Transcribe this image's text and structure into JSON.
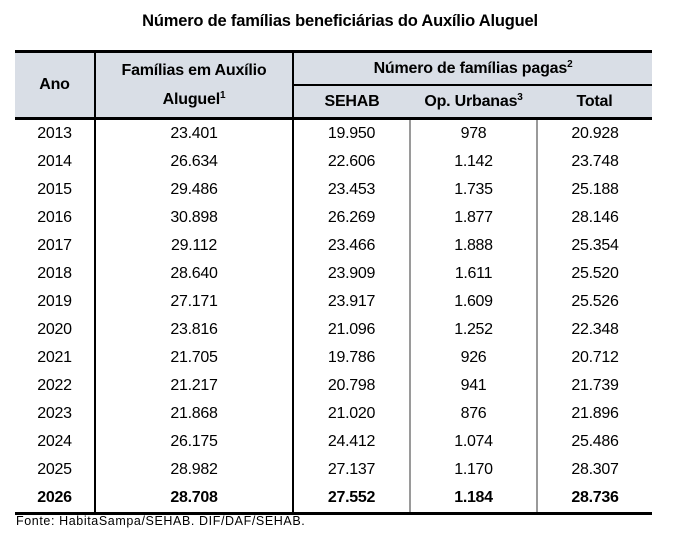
{
  "title": "Número de famílias beneficiárias do Auxílio Aluguel",
  "header": {
    "ano": "Ano",
    "familias_line1": "Famílias em Auxílio",
    "familias_line2": "Aluguel",
    "familias_sup": "1",
    "group": "Número de famílias pagas",
    "group_sup": "2",
    "sehab": "SEHAB",
    "op_urbanas": "Op. Urbanas",
    "op_urbanas_sup": "3",
    "total": "Total"
  },
  "rows": [
    {
      "ano": "2013",
      "familias": "23.401",
      "sehab": "19.950",
      "op": "978",
      "total": "20.928"
    },
    {
      "ano": "2014",
      "familias": "26.634",
      "sehab": "22.606",
      "op": "1.142",
      "total": "23.748"
    },
    {
      "ano": "2015",
      "familias": "29.486",
      "sehab": "23.453",
      "op": "1.735",
      "total": "25.188"
    },
    {
      "ano": "2016",
      "familias": "30.898",
      "sehab": "26.269",
      "op": "1.877",
      "total": "28.146"
    },
    {
      "ano": "2017",
      "familias": "29.112",
      "sehab": "23.466",
      "op": "1.888",
      "total": "25.354"
    },
    {
      "ano": "2018",
      "familias": "28.640",
      "sehab": "23.909",
      "op": "1.611",
      "total": "25.520"
    },
    {
      "ano": "2019",
      "familias": "27.171",
      "sehab": "23.917",
      "op": "1.609",
      "total": "25.526"
    },
    {
      "ano": "2020",
      "familias": "23.816",
      "sehab": "21.096",
      "op": "1.252",
      "total": "22.348"
    },
    {
      "ano": "2021",
      "familias": "21.705",
      "sehab": "19.786",
      "op": "926",
      "total": "20.712"
    },
    {
      "ano": "2022",
      "familias": "21.217",
      "sehab": "20.798",
      "op": "941",
      "total": "21.739"
    },
    {
      "ano": "2023",
      "familias": "21.868",
      "sehab": "21.020",
      "op": "876",
      "total": "21.896"
    },
    {
      "ano": "2024",
      "familias": "26.175",
      "sehab": "24.412",
      "op": "1.074",
      "total": "25.486"
    },
    {
      "ano": "2025",
      "familias": "28.982",
      "sehab": "27.137",
      "op": "1.170",
      "total": "28.307"
    },
    {
      "ano": "2026",
      "familias": "28.708",
      "sehab": "27.552",
      "op": "1.184",
      "total": "28.736"
    }
  ],
  "footer": "Fonte: HabitaSampa/SEHAB. DIF/DAF/SEHAB.",
  "colors": {
    "header_bg": "#d9dee6",
    "border_strong": "#000000",
    "border_light": "#9a9a9a"
  }
}
